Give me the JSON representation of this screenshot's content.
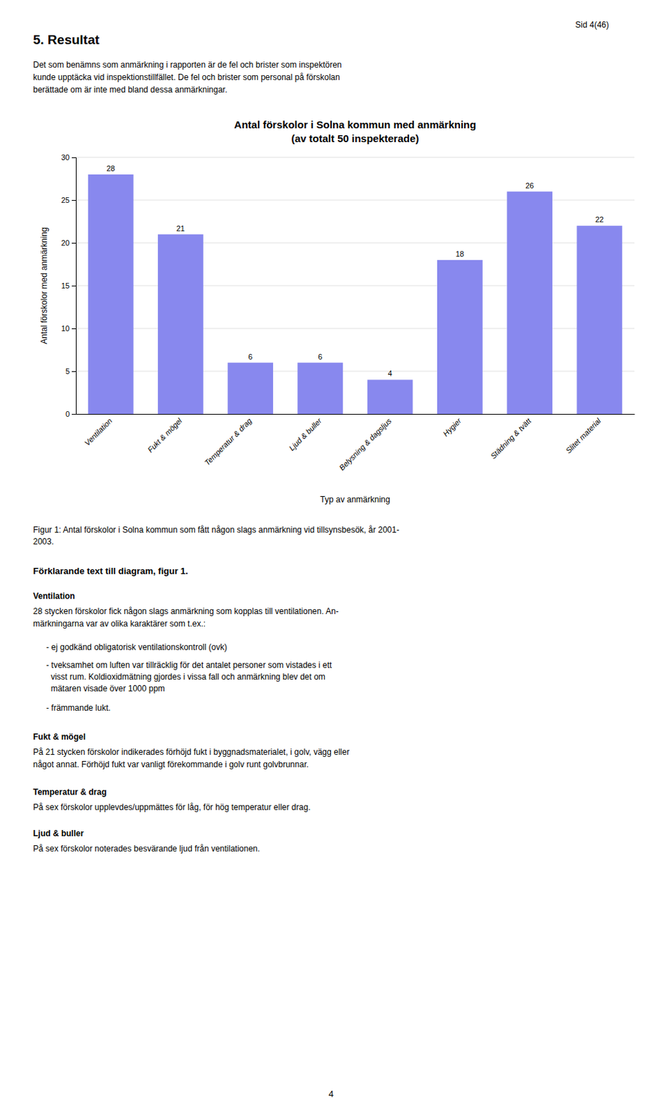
{
  "header_text": "Sid 4(46)",
  "heading": "5. Resultat",
  "para1": "Det som benämns som anmärkning i rapporten är de fel och brister som inspektören\nkunde upptäcka vid inspektionstillfället. De fel och brister som personal på förskolan\nberättade om är inte med bland dessa anmärkningar.",
  "chart_data": {
    "type": "bar",
    "title": "Antal förskolor i Solna kommun med anmärkning",
    "subtitle": "(av totalt 50 inspekterade)",
    "ylabel": "Antal förskolor med anmärkning",
    "xlabel": "Typ av anmärkning",
    "categories": [
      "Ventilation",
      "Fukt & mögel",
      "Temperatur & drag",
      "Ljud & buller",
      "Belysning & dagsljus",
      "Hygier",
      "Städning & tvätt",
      "Slitet material"
    ],
    "values": [
      28,
      21,
      6,
      6,
      4,
      18,
      26,
      22
    ],
    "color": "#8888EE",
    "ylim": [
      0,
      30
    ],
    "yticks": [
      0,
      5,
      10,
      15,
      20,
      25,
      30
    ],
    "grid": true,
    "data_labels": true
  },
  "fig_caption": "Figur 1: Antal förskolor i Solna kommun som fått någon slags anmärkning vid tillsynsbesök, år 2001-\n2003.",
  "section2_title": "Förklarande text till diagram, figur 1.",
  "ventilation_title": "Ventilation",
  "ventilation_text": "28 stycken förskolor fick någon slags anmärkning som kopplas till ventilationen. An-\nmärkningarna var av olika karaktärer som t.ex.:",
  "bullet1": "- ej godkänd obligatorisk ventilationskontroll (ovk)",
  "bullet2": "- tveksamhet om luften var tillräcklig för det antalet personer som vistades i ett\n  visst rum. Koldioxidmätning gjordes i vissa fall och anmärkning blev det om\n  mätaren visade över 1000 ppm",
  "bullet3": "- främmande lukt.",
  "fukt_title": "Fukt & mögel",
  "fukt_text": "På 21 stycken förskolor indikerades förhöjd fukt i byggnadsmaterialet, i golv, vägg eller\nnågot annat. Förhöjd fukt var vanligt förekommande i golv runt golvbrunnar.",
  "temp_title": "Temperatur & drag",
  "temp_text": "På sex förskolor upplevdes/uppmättes för låg, för hög temperatur eller drag.",
  "ljud_title": "Ljud & buller",
  "ljud_text": "På sex förskolor noterades besvärande ljud från ventilationen.",
  "page_num": "4"
}
